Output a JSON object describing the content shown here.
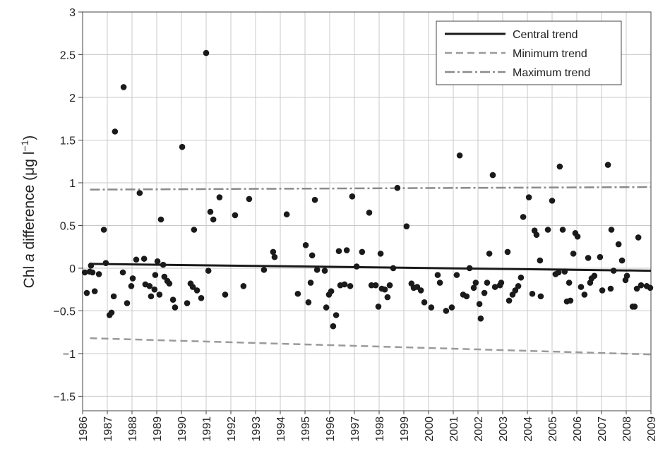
{
  "chart_data": {
    "type": "scatter",
    "y_label_parts": [
      "Chl ",
      "a",
      " difference (μg l",
      "−1",
      ")"
    ],
    "xlim": [
      1986,
      2009
    ],
    "ylim": [
      -1.67,
      3
    ],
    "xticks": [
      1986,
      1987,
      1988,
      1989,
      1990,
      1991,
      1992,
      1993,
      1994,
      1995,
      1996,
      1997,
      1998,
      1999,
      2000,
      2001,
      2002,
      2003,
      2004,
      2005,
      2006,
      2007,
      2008,
      2009
    ],
    "yticks": [
      {
        "value": -1.5,
        "label": "−1.5"
      },
      {
        "value": -1,
        "label": "−1"
      },
      {
        "value": -0.5,
        "label": "−0.5"
      },
      0,
      0.5,
      1,
      1.5,
      2,
      2.5,
      3
    ],
    "grid": true,
    "legend_position": "upper right",
    "points": {
      "color": "#1a1a1a",
      "x": [
        1986.09,
        1986.17,
        1986.29,
        1986.34,
        1986.4,
        1986.49,
        1986.66,
        1986.86,
        1986.94,
        1987.09,
        1987.17,
        1987.26,
        1987.31,
        1987.66,
        1987.63,
        1987.8,
        1987.97,
        1988.03,
        1988.17,
        1988.31,
        1988.49,
        1988.54,
        1988.71,
        1988.77,
        1988.91,
        1988.94,
        1989.03,
        1989.11,
        1989.17,
        1989.26,
        1989.31,
        1989.43,
        1989.51,
        1989.66,
        1989.74,
        1990.03,
        1990.23,
        1990.37,
        1990.46,
        1990.51,
        1990.63,
        1990.8,
        1991.0,
        1991.09,
        1991.17,
        1991.29,
        1991.54,
        1991.77,
        1992.17,
        1992.51,
        1992.74,
        1993.34,
        1993.71,
        1993.77,
        1994.26,
        1994.71,
        1995.03,
        1995.14,
        1995.23,
        1995.29,
        1995.4,
        1995.49,
        1995.8,
        1995.86,
        1995.97,
        1996.06,
        1996.14,
        1996.26,
        1996.37,
        1996.43,
        1996.6,
        1996.69,
        1996.83,
        1996.91,
        1997.09,
        1997.31,
        1997.6,
        1997.69,
        1997.86,
        1997.97,
        1998.06,
        1998.11,
        1998.23,
        1998.34,
        1998.43,
        1998.57,
        1998.74,
        1999.11,
        1999.31,
        1999.4,
        1999.54,
        1999.69,
        1999.83,
        2000.11,
        2000.37,
        2000.46,
        2000.71,
        2000.94,
        2001.14,
        2001.26,
        2001.4,
        2001.54,
        2001.66,
        2001.83,
        2001.91,
        2002.06,
        2002.11,
        2002.26,
        2002.37,
        2002.46,
        2002.6,
        2002.69,
        2002.89,
        2002.94,
        2003.2,
        2003.26,
        2003.4,
        2003.51,
        2003.63,
        2003.74,
        2003.83,
        2004.06,
        2004.2,
        2004.29,
        2004.37,
        2004.51,
        2004.54,
        2004.83,
        2005.0,
        2005.14,
        2005.26,
        2005.31,
        2005.43,
        2005.51,
        2005.6,
        2005.69,
        2005.74,
        2005.86,
        2005.94,
        2006.03,
        2006.17,
        2006.31,
        2006.46,
        2006.54,
        2006.6,
        2006.71,
        2006.94,
        2007.03,
        2007.26,
        2007.37,
        2007.4,
        2007.49,
        2007.69,
        2007.83,
        2007.97,
        2008.03,
        2008.26,
        2008.34,
        2008.43,
        2008.49,
        2008.6,
        2008.83,
        2008.97
      ],
      "values": [
        -0.05,
        -0.29,
        -0.04,
        0.03,
        -0.05,
        -0.27,
        -0.07,
        0.45,
        0.06,
        -0.55,
        -0.52,
        -0.33,
        1.6,
        2.12,
        -0.05,
        -0.41,
        -0.21,
        -0.12,
        0.1,
        0.88,
        0.11,
        -0.19,
        -0.21,
        -0.33,
        -0.25,
        -0.08,
        0.08,
        -0.31,
        0.57,
        0.04,
        -0.1,
        -0.15,
        -0.18,
        -0.37,
        -0.46,
        1.42,
        -0.41,
        -0.18,
        -0.22,
        0.45,
        -0.26,
        -0.35,
        2.52,
        -0.03,
        0.66,
        0.57,
        0.83,
        -0.31,
        0.62,
        -0.21,
        0.81,
        -0.02,
        0.19,
        0.13,
        0.63,
        -0.3,
        0.27,
        -0.4,
        -0.17,
        0.15,
        0.8,
        -0.02,
        -0.03,
        -0.46,
        -0.31,
        -0.27,
        -0.68,
        -0.55,
        0.2,
        -0.2,
        -0.19,
        0.21,
        -0.21,
        0.84,
        0.02,
        0.19,
        0.65,
        -0.2,
        -0.2,
        -0.45,
        0.17,
        -0.24,
        -0.25,
        -0.34,
        -0.2,
        0.0,
        0.94,
        0.49,
        -0.18,
        -0.23,
        -0.22,
        -0.26,
        -0.4,
        -0.46,
        -0.08,
        -0.17,
        -0.5,
        -0.46,
        -0.08,
        1.32,
        -0.31,
        -0.33,
        0.0,
        -0.23,
        -0.17,
        -0.42,
        -0.59,
        -0.29,
        -0.17,
        0.17,
        1.09,
        -0.22,
        -0.2,
        -0.17,
        0.19,
        -0.38,
        -0.31,
        -0.26,
        -0.21,
        -0.11,
        0.6,
        0.83,
        -0.3,
        0.44,
        0.39,
        0.09,
        -0.33,
        0.45,
        0.79,
        -0.07,
        -0.05,
        1.19,
        0.45,
        -0.04,
        -0.39,
        -0.17,
        -0.38,
        0.17,
        0.41,
        0.37,
        -0.22,
        -0.31,
        0.12,
        -0.17,
        -0.12,
        -0.09,
        0.13,
        -0.26,
        1.21,
        -0.24,
        0.45,
        -0.03,
        0.28,
        0.09,
        -0.14,
        -0.09,
        -0.45,
        -0.45,
        -0.24,
        0.36,
        -0.2,
        -0.21,
        -0.23
      ]
    },
    "series": [
      {
        "name": "Central trend",
        "color": "#1a1a1a",
        "style": "solid",
        "x": [
          1986.3,
          2009
        ],
        "values": [
          0.05,
          -0.03
        ]
      },
      {
        "name": "Minimum trend",
        "color": "#9a9a9a",
        "style": "dashed",
        "x": [
          1986.3,
          2009
        ],
        "values": [
          -0.82,
          -1.01
        ]
      },
      {
        "name": "Maximum trend",
        "color": "#8a8a8a",
        "style": "dashdot",
        "x": [
          1986.3,
          2009
        ],
        "values": [
          0.92,
          0.95
        ]
      }
    ]
  }
}
